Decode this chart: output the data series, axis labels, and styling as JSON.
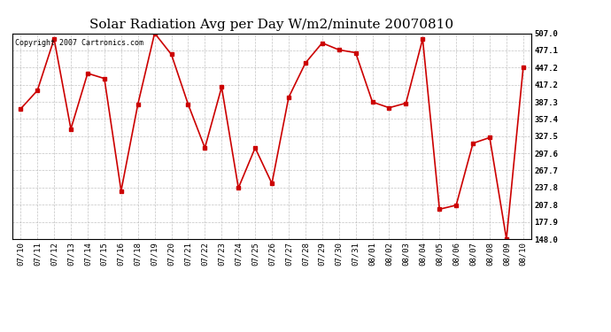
{
  "title": "Solar Radiation Avg per Day W/m2/minute 20070810",
  "copyright": "Copyright 2007 Cartronics.com",
  "labels": [
    "07/10",
    "07/11",
    "07/12",
    "07/13",
    "07/14",
    "07/15",
    "07/16",
    "07/18",
    "07/19",
    "07/20",
    "07/21",
    "07/22",
    "07/23",
    "07/24",
    "07/25",
    "07/26",
    "07/27",
    "07/28",
    "07/29",
    "07/30",
    "07/31",
    "08/01",
    "08/02",
    "08/03",
    "08/04",
    "08/05",
    "08/06",
    "08/07",
    "08/08",
    "08/09",
    "08/10"
  ],
  "values": [
    375,
    407,
    497,
    340,
    437,
    428,
    232,
    383,
    507,
    470,
    383,
    307,
    413,
    237,
    307,
    245,
    395,
    455,
    490,
    478,
    473,
    387,
    377,
    385,
    497,
    200,
    207,
    315,
    325,
    148,
    447
  ],
  "line_color": "#cc0000",
  "marker": "s",
  "marker_size": 3,
  "bg_color": "#ffffff",
  "grid_color": "#aaaaaa",
  "yticks": [
    148.0,
    177.9,
    207.8,
    237.8,
    267.7,
    297.6,
    327.5,
    357.4,
    387.3,
    417.2,
    447.2,
    477.1,
    507.0
  ],
  "ymin": 148.0,
  "ymax": 507.0,
  "title_fontsize": 11,
  "copyright_fontsize": 6,
  "tick_fontsize": 6.5,
  "figwidth": 6.9,
  "figheight": 3.75,
  "dpi": 100
}
